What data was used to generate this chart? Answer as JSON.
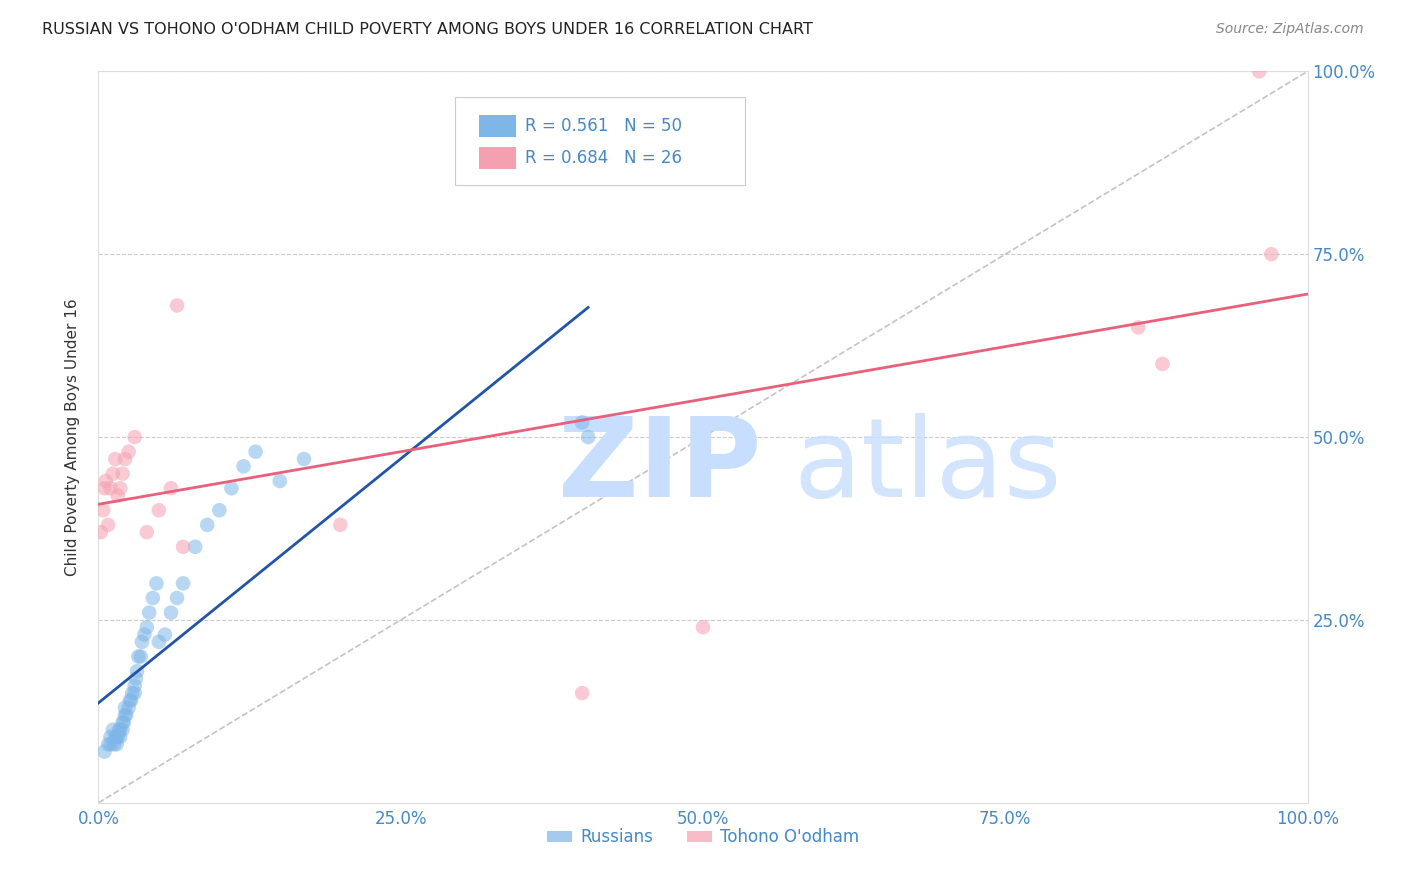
{
  "title": "RUSSIAN VS TOHONO O'ODHAM CHILD POVERTY AMONG BOYS UNDER 16 CORRELATION CHART",
  "source": "Source: ZipAtlas.com",
  "ylabel": "Child Poverty Among Boys Under 16",
  "xlim": [
    0,
    1
  ],
  "ylim": [
    0,
    1
  ],
  "xticks": [
    0,
    0.25,
    0.5,
    0.75,
    1.0
  ],
  "yticks": [
    0.25,
    0.5,
    0.75,
    1.0
  ],
  "xticklabels": [
    "0.0%",
    "25.0%",
    "50.0%",
    "75.0%",
    "100.0%"
  ],
  "yticklabels_right": [
    "25.0%",
    "50.0%",
    "75.0%",
    "100.0%"
  ],
  "legend_r_blue": "0.561",
  "legend_n_blue": "50",
  "legend_r_pink": "0.684",
  "legend_n_pink": "26",
  "blue_color": "#7EB6E8",
  "pink_color": "#F5A0B0",
  "blue_line_color": "#2255AA",
  "pink_line_color": "#E8607A",
  "tick_color": "#4488CC",
  "russians_x": [
    0.005,
    0.008,
    0.01,
    0.01,
    0.012,
    0.013,
    0.014,
    0.015,
    0.015,
    0.016,
    0.017,
    0.018,
    0.018,
    0.02,
    0.02,
    0.021,
    0.022,
    0.022,
    0.023,
    0.025,
    0.026,
    0.027,
    0.028,
    0.03,
    0.03,
    0.031,
    0.032,
    0.033,
    0.035,
    0.036,
    0.038,
    0.04,
    0.042,
    0.045,
    0.048,
    0.05,
    0.055,
    0.06,
    0.065,
    0.07,
    0.08,
    0.09,
    0.1,
    0.11,
    0.12,
    0.13,
    0.15,
    0.17,
    0.4,
    0.405
  ],
  "russians_y": [
    0.07,
    0.08,
    0.08,
    0.09,
    0.1,
    0.08,
    0.09,
    0.08,
    0.09,
    0.09,
    0.1,
    0.1,
    0.09,
    0.1,
    0.11,
    0.11,
    0.12,
    0.13,
    0.12,
    0.13,
    0.14,
    0.14,
    0.15,
    0.15,
    0.16,
    0.17,
    0.18,
    0.2,
    0.2,
    0.22,
    0.23,
    0.24,
    0.26,
    0.28,
    0.3,
    0.22,
    0.23,
    0.26,
    0.28,
    0.3,
    0.35,
    0.38,
    0.4,
    0.43,
    0.46,
    0.48,
    0.44,
    0.47,
    0.52,
    0.5
  ],
  "tohono_x": [
    0.002,
    0.004,
    0.005,
    0.006,
    0.008,
    0.01,
    0.012,
    0.014,
    0.016,
    0.018,
    0.02,
    0.022,
    0.025,
    0.03,
    0.04,
    0.05,
    0.06,
    0.065,
    0.07,
    0.2,
    0.4,
    0.5,
    0.86,
    0.88,
    0.96,
    0.97
  ],
  "tohono_y": [
    0.37,
    0.4,
    0.43,
    0.44,
    0.38,
    0.43,
    0.45,
    0.47,
    0.42,
    0.43,
    0.45,
    0.47,
    0.48,
    0.5,
    0.37,
    0.4,
    0.43,
    0.68,
    0.35,
    0.38,
    0.15,
    0.24,
    0.65,
    0.6,
    1.0,
    0.75
  ],
  "marker_size": 110,
  "watermark_zip_color": "#C8DEFF",
  "watermark_atlas_color": "#C8DEFF"
}
